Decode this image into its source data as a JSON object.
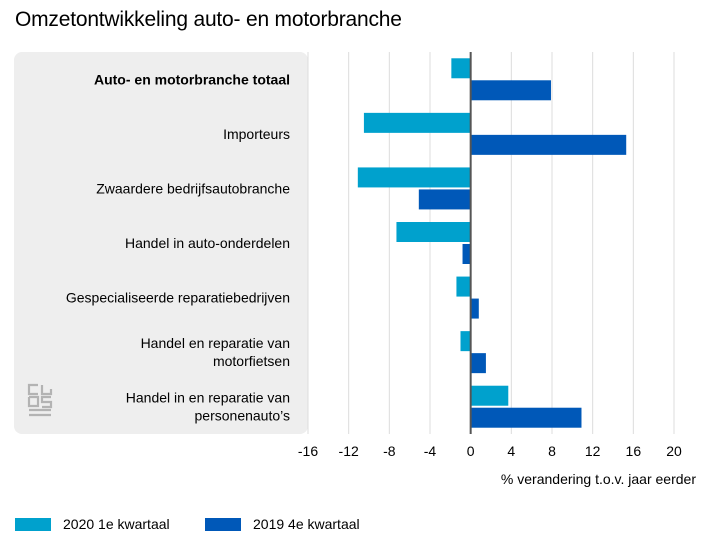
{
  "title": "Omzetontwikkeling auto- en motorbranche",
  "colors": {
    "series1": "#00a1cd",
    "series2": "#0058b8",
    "panel": "#eeeeee",
    "grid": "#dcdcdc",
    "zero_axis": "#555555"
  },
  "logo": {
    "icon": "cbs-logo-icon"
  },
  "chart_data": {
    "type": "bar",
    "orientation": "horizontal",
    "categories": [
      "Auto- en motorbranche totaal",
      "Importeurs",
      "Zwaardere bedrijfsautobranche",
      "Handel in auto-onderdelen",
      "Gespecialiseerde reparatiebedrijven",
      "Handel en reparatie van motorfietsen",
      "Handel in en reparatie van personenauto’s"
    ],
    "category_lines": [
      [
        "Auto- en motorbranche totaal"
      ],
      [
        "Importeurs"
      ],
      [
        "Zwaardere bedrijfsautobranche"
      ],
      [
        "Handel in auto-onderdelen"
      ],
      [
        "Gespecialiseerde reparatiebedrijven"
      ],
      [
        "Handel en reparatie van",
        "motorfietsen"
      ],
      [
        "Handel in en reparatie van",
        "personenauto’s"
      ]
    ],
    "bold_category": 0,
    "series": [
      {
        "name": "2020 1e kwartaal",
        "values": [
          -1.9,
          -10.5,
          -11.1,
          -7.3,
          -1.4,
          -1.0,
          3.7
        ]
      },
      {
        "name": "2019 4e kwartaal",
        "values": [
          7.9,
          15.3,
          -5.1,
          -0.8,
          0.8,
          1.5,
          10.9
        ]
      }
    ],
    "xlim": [
      -16,
      20
    ],
    "xticks": [
      "-16",
      "-12",
      "-8",
      "-4",
      "0",
      "4",
      "8",
      "12",
      "16",
      "20"
    ],
    "xlabel": "% verandering t.o.v. jaar eerder",
    "grid": true,
    "legend_position": "bottom-left"
  }
}
